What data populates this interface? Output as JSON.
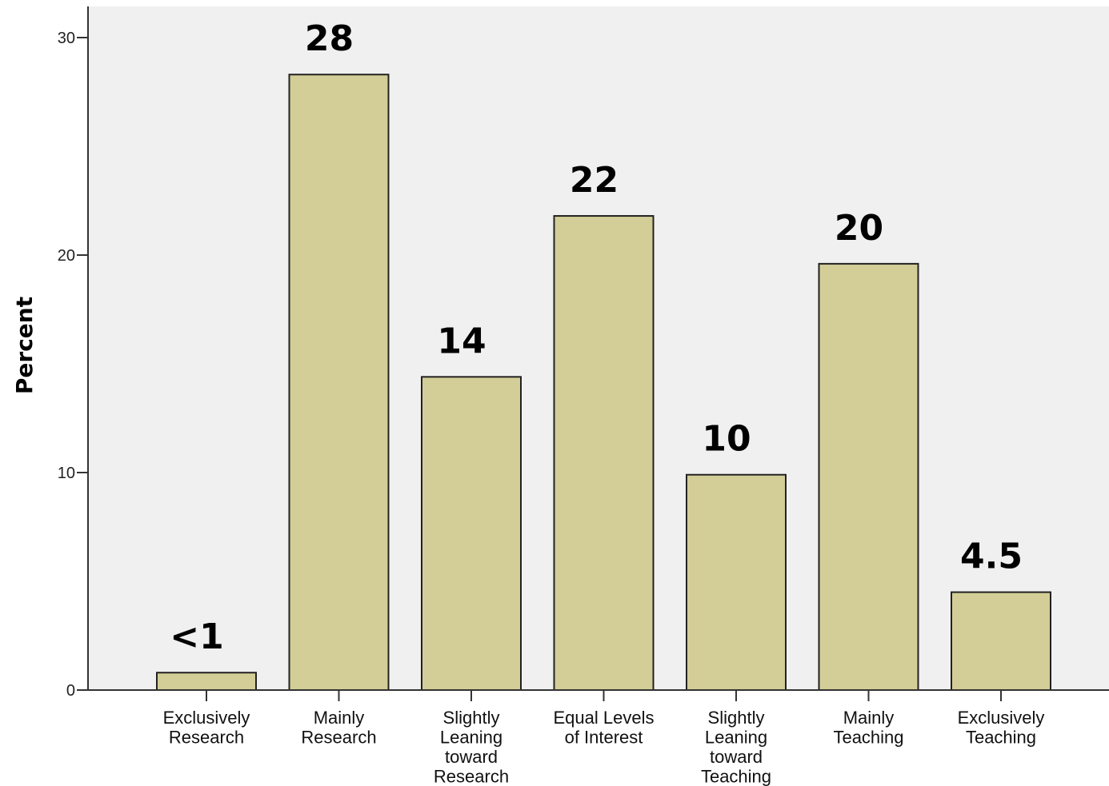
{
  "chart_data": {
    "type": "bar",
    "categories": [
      [
        "Exclusively",
        "Research"
      ],
      [
        "Mainly",
        "Research"
      ],
      [
        "Slightly",
        "Leaning",
        "toward",
        "Research"
      ],
      [
        "Equal Levels",
        "of Interest"
      ],
      [
        "Slightly",
        "Leaning",
        "toward",
        "Teaching"
      ],
      [
        "Mainly",
        "Teaching"
      ],
      [
        "Exclusively",
        "Teaching"
      ]
    ],
    "values": [
      0.8,
      28.3,
      14.4,
      21.8,
      9.9,
      19.6,
      4.5
    ],
    "data_labels": [
      "<1",
      "28",
      "14",
      "22",
      "10",
      "20",
      "4.5"
    ],
    "title": "",
    "xlabel": "",
    "ylabel": "Percent",
    "ylim": [
      0,
      30
    ],
    "yticks": [
      0,
      10,
      20,
      30
    ],
    "grid": false,
    "bar_color": "#d3cd97",
    "bar_stroke": "#222222",
    "plot_background": "#f0f0f0"
  }
}
